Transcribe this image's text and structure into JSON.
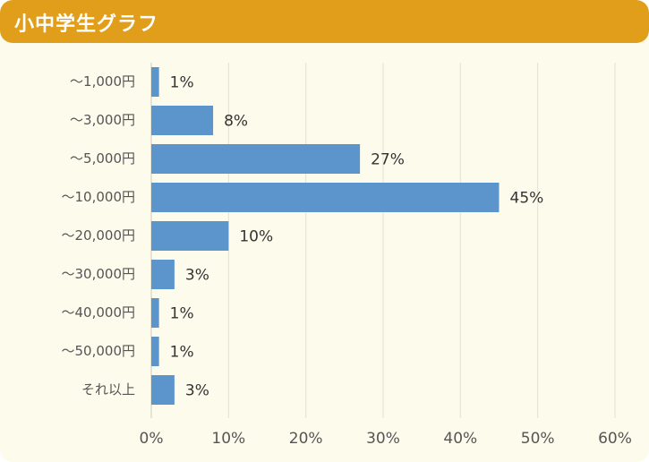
{
  "header": {
    "title": "小中学生グラフ"
  },
  "colors": {
    "header": "#e19e1a",
    "background": "#fdfbec",
    "bar": "#5b95cb"
  },
  "chart_data": {
    "type": "bar",
    "orientation": "horizontal",
    "title": "小中学生グラフ",
    "categories": [
      "～1,000円",
      "～3,000円",
      "～5,000円",
      "～10,000円",
      "～20,000円",
      "～30,000円",
      "～40,000円",
      "～50,000円",
      "それ以上"
    ],
    "values": [
      1,
      8,
      27,
      45,
      10,
      3,
      1,
      1,
      3
    ],
    "value_labels": [
      "1%",
      "8%",
      "27%",
      "45%",
      "10%",
      "3%",
      "1%",
      "1%",
      "3%"
    ],
    "xlim": [
      0,
      60
    ],
    "x_ticks": [
      0,
      10,
      20,
      30,
      40,
      50,
      60
    ],
    "x_tick_labels": [
      "0%",
      "10%",
      "20%",
      "30%",
      "40%",
      "50%",
      "60%"
    ],
    "grid": true
  }
}
